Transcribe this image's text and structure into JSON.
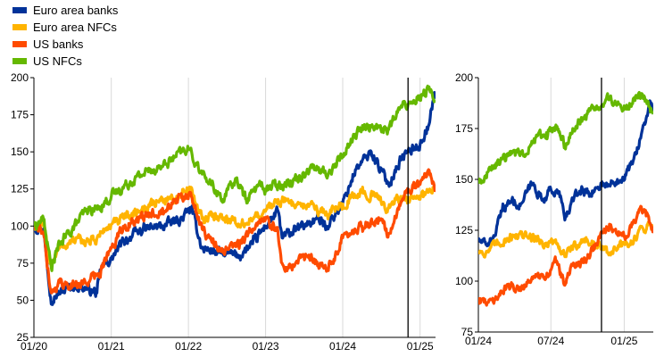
{
  "chart_data": [
    {
      "type": "line",
      "legend_position": "top-left",
      "grid": "vertical",
      "ylim": [
        25,
        200
      ],
      "yticks": [
        25,
        50,
        75,
        100,
        125,
        150,
        175,
        200
      ],
      "xlim": [
        "2020-01-01",
        "2025-03-15"
      ],
      "xticks": [
        {
          "date": "2020-01-01",
          "label": "01/20"
        },
        {
          "date": "2021-01-01",
          "label": "01/21"
        },
        {
          "date": "2022-01-01",
          "label": "01/22"
        },
        {
          "date": "2023-01-01",
          "label": "01/23"
        },
        {
          "date": "2024-01-01",
          "label": "01/24"
        },
        {
          "date": "2025-01-01",
          "label": "01/25"
        }
      ],
      "vertical_marker": "2024-11-05",
      "series": [
        {
          "name": "Euro area banks",
          "color": "#003299",
          "points": [
            [
              "2020-01-01",
              100
            ],
            [
              "2020-02-15",
              98
            ],
            [
              "2020-03-20",
              52
            ],
            [
              "2020-05-01",
              55
            ],
            [
              "2020-07-01",
              60
            ],
            [
              "2020-09-01",
              58
            ],
            [
              "2020-10-25",
              55
            ],
            [
              "2020-11-15",
              72
            ],
            [
              "2021-01-01",
              78
            ],
            [
              "2021-03-01",
              90
            ],
            [
              "2021-06-01",
              98
            ],
            [
              "2021-09-01",
              100
            ],
            [
              "2021-12-01",
              105
            ],
            [
              "2022-01-15",
              112
            ],
            [
              "2022-03-07",
              85
            ],
            [
              "2022-06-01",
              82
            ],
            [
              "2022-09-01",
              80
            ],
            [
              "2022-11-01",
              88
            ],
            [
              "2023-01-01",
              100
            ],
            [
              "2023-03-01",
              110
            ],
            [
              "2023-03-20",
              92
            ],
            [
              "2023-06-01",
              98
            ],
            [
              "2023-09-01",
              105
            ],
            [
              "2023-10-15",
              100
            ],
            [
              "2024-01-01",
              115
            ],
            [
              "2024-03-01",
              138
            ],
            [
              "2024-05-15",
              150
            ],
            [
              "2024-08-05",
              128
            ],
            [
              "2024-10-01",
              145
            ],
            [
              "2024-11-05",
              150
            ],
            [
              "2025-01-01",
              155
            ],
            [
              "2025-02-15",
              170
            ],
            [
              "2025-03-10",
              190
            ],
            [
              "2025-03-15",
              186
            ]
          ]
        },
        {
          "name": "Euro area NFCs",
          "color": "#ffb400",
          "points": [
            [
              "2020-01-01",
              100
            ],
            [
              "2020-02-15",
              100
            ],
            [
              "2020-03-20",
              75
            ],
            [
              "2020-05-01",
              85
            ],
            [
              "2020-07-01",
              90
            ],
            [
              "2020-10-15",
              90
            ],
            [
              "2020-12-01",
              98
            ],
            [
              "2021-03-01",
              105
            ],
            [
              "2021-06-01",
              112
            ],
            [
              "2021-09-01",
              118
            ],
            [
              "2021-12-01",
              120
            ],
            [
              "2022-01-10",
              125
            ],
            [
              "2022-03-07",
              105
            ],
            [
              "2022-06-01",
              108
            ],
            [
              "2022-09-01",
              100
            ],
            [
              "2022-11-01",
              105
            ],
            [
              "2023-01-01",
              110
            ],
            [
              "2023-03-01",
              118
            ],
            [
              "2023-06-01",
              115
            ],
            [
              "2023-09-01",
              112
            ],
            [
              "2023-10-20",
              108
            ],
            [
              "2024-01-01",
              115
            ],
            [
              "2024-04-01",
              123
            ],
            [
              "2024-06-01",
              120
            ],
            [
              "2024-08-05",
              112
            ],
            [
              "2024-10-01",
              120
            ],
            [
              "2024-11-05",
              117
            ],
            [
              "2025-01-01",
              118
            ],
            [
              "2025-02-15",
              125
            ],
            [
              "2025-03-15",
              128
            ]
          ]
        },
        {
          "name": "US banks",
          "color": "#ff4b00",
          "points": [
            [
              "2020-01-01",
              100
            ],
            [
              "2020-02-15",
              96
            ],
            [
              "2020-03-23",
              55
            ],
            [
              "2020-05-01",
              62
            ],
            [
              "2020-07-01",
              60
            ],
            [
              "2020-09-01",
              62
            ],
            [
              "2020-11-01",
              68
            ],
            [
              "2021-01-01",
              85
            ],
            [
              "2021-03-01",
              100
            ],
            [
              "2021-06-01",
              105
            ],
            [
              "2021-09-01",
              112
            ],
            [
              "2021-11-01",
              118
            ],
            [
              "2022-01-15",
              120
            ],
            [
              "2022-03-07",
              98
            ],
            [
              "2022-06-15",
              82
            ],
            [
              "2022-09-01",
              88
            ],
            [
              "2022-11-01",
              98
            ],
            [
              "2023-01-01",
              105
            ],
            [
              "2023-03-01",
              95
            ],
            [
              "2023-03-20",
              75
            ],
            [
              "2023-05-01",
              72
            ],
            [
              "2023-07-01",
              80
            ],
            [
              "2023-09-01",
              76
            ],
            [
              "2023-10-25",
              70
            ],
            [
              "2024-01-01",
              92
            ],
            [
              "2024-04-01",
              100
            ],
            [
              "2024-07-01",
              105
            ],
            [
              "2024-08-05",
              95
            ],
            [
              "2024-10-01",
              115
            ],
            [
              "2024-11-06",
              125
            ],
            [
              "2025-01-01",
              128
            ],
            [
              "2025-02-10",
              138
            ],
            [
              "2025-03-15",
              126
            ]
          ]
        },
        {
          "name": "US NFCs",
          "color": "#65b800",
          "points": [
            [
              "2020-01-01",
              100
            ],
            [
              "2020-02-15",
              105
            ],
            [
              "2020-03-23",
              72
            ],
            [
              "2020-05-01",
              88
            ],
            [
              "2020-07-01",
              98
            ],
            [
              "2020-09-01",
              110
            ],
            [
              "2020-11-01",
              112
            ],
            [
              "2021-01-01",
              120
            ],
            [
              "2021-04-01",
              130
            ],
            [
              "2021-07-01",
              138
            ],
            [
              "2021-09-01",
              140
            ],
            [
              "2021-12-01",
              150
            ],
            [
              "2022-01-01",
              152
            ],
            [
              "2022-03-07",
              135
            ],
            [
              "2022-06-15",
              118
            ],
            [
              "2022-08-15",
              132
            ],
            [
              "2022-10-01",
              118
            ],
            [
              "2022-12-01",
              128
            ],
            [
              "2023-01-01",
              125
            ],
            [
              "2023-03-01",
              128
            ],
            [
              "2023-06-01",
              132
            ],
            [
              "2023-08-01",
              140
            ],
            [
              "2023-10-25",
              135
            ],
            [
              "2024-01-01",
              148
            ],
            [
              "2024-03-01",
              162
            ],
            [
              "2024-05-01",
              168
            ],
            [
              "2024-08-05",
              165
            ],
            [
              "2024-10-01",
              180
            ],
            [
              "2024-11-05",
              182
            ],
            [
              "2025-01-01",
              188
            ],
            [
              "2025-02-15",
              192
            ],
            [
              "2025-03-15",
              185
            ]
          ]
        }
      ]
    },
    {
      "type": "line",
      "grid": "vertical",
      "ylim": [
        75,
        200
      ],
      "yticks": [
        75,
        100,
        125,
        150,
        175,
        200
      ],
      "xlim": [
        "2024-01-01",
        "2025-03-15"
      ],
      "xticks": [
        {
          "date": "2024-01-01",
          "label": "01/24"
        },
        {
          "date": "2024-07-01",
          "label": "07/24"
        },
        {
          "date": "2025-01-01",
          "label": "01/25"
        }
      ],
      "vertical_marker": "2024-11-05",
      "series": [
        {
          "name": "Euro area banks",
          "color": "#003299",
          "points": [
            [
              "2024-01-01",
              120
            ],
            [
              "2024-01-20",
              118
            ],
            [
              "2024-02-10",
              122
            ],
            [
              "2024-03-01",
              135
            ],
            [
              "2024-03-25",
              140
            ],
            [
              "2024-04-15",
              137
            ],
            [
              "2024-05-15",
              148
            ],
            [
              "2024-06-10",
              140
            ],
            [
              "2024-07-01",
              145
            ],
            [
              "2024-07-25",
              142
            ],
            [
              "2024-08-05",
              130
            ],
            [
              "2024-08-25",
              140
            ],
            [
              "2024-09-15",
              145
            ],
            [
              "2024-10-10",
              143
            ],
            [
              "2024-11-05",
              148
            ],
            [
              "2024-11-25",
              147
            ],
            [
              "2024-12-15",
              150
            ],
            [
              "2025-01-05",
              152
            ],
            [
              "2025-01-25",
              160
            ],
            [
              "2025-02-10",
              170
            ],
            [
              "2025-02-25",
              180
            ],
            [
              "2025-03-08",
              188
            ],
            [
              "2025-03-15",
              182
            ]
          ]
        },
        {
          "name": "Euro area NFCs",
          "color": "#ffb400",
          "points": [
            [
              "2024-01-01",
              115
            ],
            [
              "2024-01-20",
              114
            ],
            [
              "2024-02-15",
              118
            ],
            [
              "2024-03-15",
              121
            ],
            [
              "2024-04-05",
              123
            ],
            [
              "2024-05-01",
              122
            ],
            [
              "2024-05-25",
              121
            ],
            [
              "2024-06-15",
              118
            ],
            [
              "2024-07-10",
              120
            ],
            [
              "2024-08-05",
              112
            ],
            [
              "2024-08-20",
              116
            ],
            [
              "2024-09-20",
              120
            ],
            [
              "2024-10-15",
              119
            ],
            [
              "2024-11-05",
              116
            ],
            [
              "2024-11-25",
              114
            ],
            [
              "2024-12-20",
              117
            ],
            [
              "2025-01-15",
              118
            ],
            [
              "2025-02-05",
              124
            ],
            [
              "2025-03-01",
              128
            ],
            [
              "2025-03-15",
              127
            ]
          ]
        },
        {
          "name": "US banks",
          "color": "#ff4b00",
          "points": [
            [
              "2024-01-01",
              92
            ],
            [
              "2024-01-20",
              89
            ],
            [
              "2024-02-15",
              92
            ],
            [
              "2024-03-15",
              98
            ],
            [
              "2024-04-15",
              97
            ],
            [
              "2024-05-15",
              102
            ],
            [
              "2024-06-15",
              101
            ],
            [
              "2024-07-15",
              110
            ],
            [
              "2024-08-05",
              98
            ],
            [
              "2024-08-25",
              108
            ],
            [
              "2024-09-20",
              110
            ],
            [
              "2024-10-15",
              115
            ],
            [
              "2024-11-06",
              124
            ],
            [
              "2024-11-25",
              128
            ],
            [
              "2024-12-15",
              123
            ],
            [
              "2025-01-05",
              122
            ],
            [
              "2025-01-25",
              130
            ],
            [
              "2025-02-10",
              136
            ],
            [
              "2025-02-25",
              132
            ],
            [
              "2025-03-08",
              128
            ],
            [
              "2025-03-15",
              125
            ]
          ]
        },
        {
          "name": "US NFCs",
          "color": "#65b800",
          "points": [
            [
              "2024-01-01",
              148
            ],
            [
              "2024-01-20",
              152
            ],
            [
              "2024-02-10",
              157
            ],
            [
              "2024-03-01",
              160
            ],
            [
              "2024-04-01",
              164
            ],
            [
              "2024-04-25",
              162
            ],
            [
              "2024-05-20",
              170
            ],
            [
              "2024-06-20",
              173
            ],
            [
              "2024-07-15",
              176
            ],
            [
              "2024-08-05",
              166
            ],
            [
              "2024-08-25",
              175
            ],
            [
              "2024-09-20",
              180
            ],
            [
              "2024-10-15",
              185
            ],
            [
              "2024-11-05",
              186
            ],
            [
              "2024-11-25",
              190
            ],
            [
              "2024-12-15",
              187
            ],
            [
              "2025-01-10",
              185
            ],
            [
              "2025-01-25",
              190
            ],
            [
              "2025-02-15",
              192
            ],
            [
              "2025-03-05",
              186
            ],
            [
              "2025-03-15",
              182
            ]
          ]
        }
      ]
    }
  ]
}
